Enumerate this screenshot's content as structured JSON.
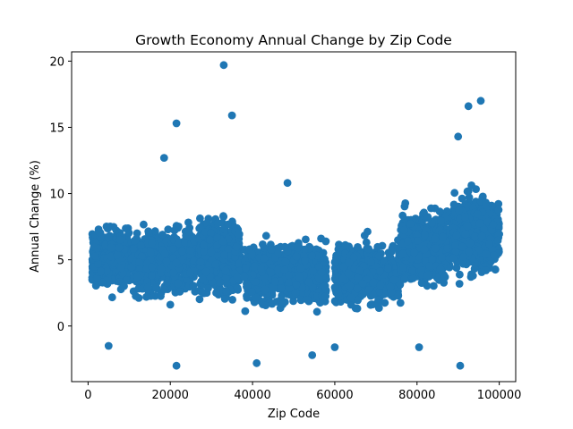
{
  "chart_data": {
    "type": "scatter",
    "title": "Growth Economy Annual Change by Zip Code",
    "xlabel": "Zip Code",
    "ylabel": "Annual Change (%)",
    "xlim": [
      -4000,
      104000
    ],
    "ylim": [
      -4.2,
      20.7
    ],
    "xticks": [
      0,
      20000,
      40000,
      60000,
      80000,
      100000
    ],
    "yticks": [
      0,
      5,
      10,
      15,
      20
    ],
    "grid": false,
    "legend": "none",
    "marker_color": "#1f77b4",
    "clusters": [
      {
        "x_range": [
          1000,
          10000
        ],
        "y_center": 5.2,
        "y_spread": 1.4,
        "count": 520
      },
      {
        "x_range": [
          10500,
          26000
        ],
        "y_center": 5.0,
        "y_spread": 1.5,
        "count": 650
      },
      {
        "x_range": [
          27000,
          37000
        ],
        "y_center": 5.3,
        "y_spread": 1.8,
        "count": 560
      },
      {
        "x_range": [
          38000,
          58000
        ],
        "y_center": 4.0,
        "y_spread": 1.4,
        "count": 720
      },
      {
        "x_range": [
          60000,
          76000
        ],
        "y_center": 4.0,
        "y_spread": 1.4,
        "count": 620
      },
      {
        "x_range": [
          76000,
          88000
        ],
        "y_center": 6.0,
        "y_spread": 1.6,
        "count": 600
      },
      {
        "x_range": [
          88500,
          100000
        ],
        "y_center": 7.0,
        "y_spread": 1.7,
        "count": 620
      }
    ],
    "outliers": [
      {
        "x": 33000,
        "y": 19.7
      },
      {
        "x": 21500,
        "y": 15.3
      },
      {
        "x": 35000,
        "y": 15.9
      },
      {
        "x": 18500,
        "y": 12.7
      },
      {
        "x": 48500,
        "y": 10.8
      },
      {
        "x": 95500,
        "y": 17.0
      },
      {
        "x": 92500,
        "y": 16.6
      },
      {
        "x": 90000,
        "y": 14.3
      },
      {
        "x": 21500,
        "y": -3.0
      },
      {
        "x": 90500,
        "y": -3.0
      },
      {
        "x": 41000,
        "y": -2.8
      },
      {
        "x": 5000,
        "y": -1.5
      },
      {
        "x": 80500,
        "y": -1.6
      },
      {
        "x": 54500,
        "y": -2.2
      },
      {
        "x": 60000,
        "y": -1.6
      }
    ]
  }
}
